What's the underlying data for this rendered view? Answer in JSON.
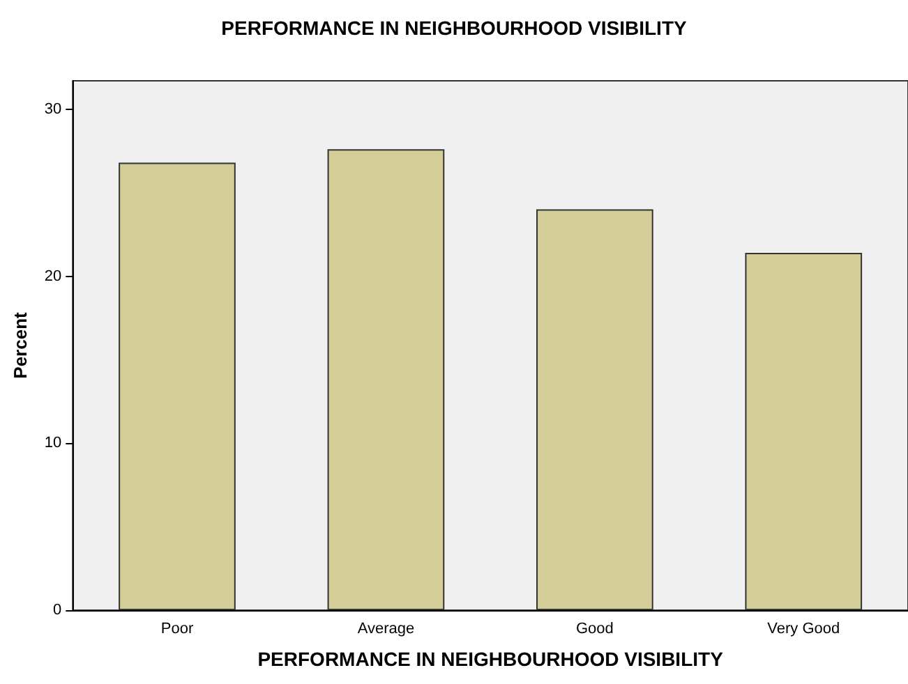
{
  "chart_data": {
    "type": "bar",
    "title": "PERFORMANCE IN NEIGHBOURHOOD VISIBILITY",
    "xlabel": "PERFORMANCE IN NEIGHBOURHOOD VISIBILITY",
    "ylabel": "Percent",
    "categories": [
      "Poor",
      "Average",
      "Good",
      "Very Good"
    ],
    "values": [
      26.8,
      27.6,
      24.0,
      21.4
    ],
    "color": "#d3ce97",
    "ylim": [
      0,
      31.7
    ],
    "yticks": [
      0,
      10,
      20,
      30
    ],
    "grid": false
  }
}
